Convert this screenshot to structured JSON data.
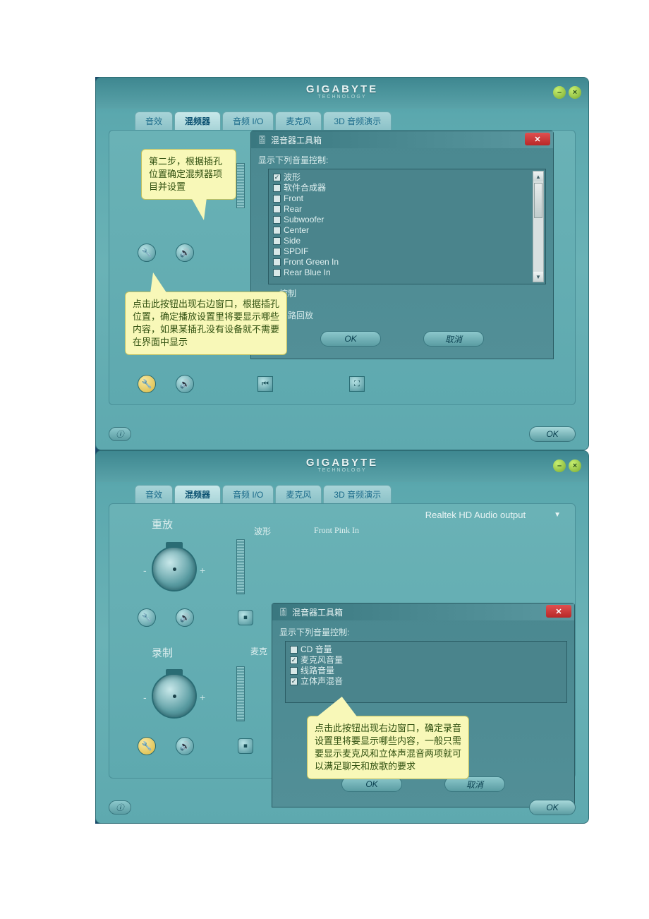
{
  "brand": {
    "name": "GIGABYTE",
    "sub": "TECHNOLOGY"
  },
  "tabs": [
    "音效",
    "混频器",
    "音频 I/O",
    "麦克风",
    "3D 音频演示"
  ],
  "toolbox_title": "混音器工具箱",
  "toolbox_label": "显示下列音量控制:",
  "list1": [
    {
      "label": "波形",
      "checked": true
    },
    {
      "label": "软件合成器",
      "checked": false
    },
    {
      "label": "Front",
      "checked": false
    },
    {
      "label": "Rear",
      "checked": false
    },
    {
      "label": "Subwoofer",
      "checked": false
    },
    {
      "label": "Center",
      "checked": false
    },
    {
      "label": "Side",
      "checked": false
    },
    {
      "label": "SPDIF",
      "checked": false
    },
    {
      "label": "Front Green In",
      "checked": false
    },
    {
      "label": "Rear Blue In",
      "checked": false
    }
  ],
  "list2": [
    {
      "label": "CD 音量",
      "checked": false
    },
    {
      "label": "麦克风音量",
      "checked": true
    },
    {
      "label": "线路音量",
      "checked": false
    },
    {
      "label": "立体声混音",
      "checked": true
    }
  ],
  "extra1": "控制",
  "extra2": "多路回放",
  "btn_ok": "OK",
  "btn_cancel": "取消",
  "callout1": "第二步，根据插孔位置确定混频器项目并设置",
  "callout2": "点击此按钮出现右边窗口，根据插孔位置，确定播放设置里将要显示哪些内容，如果某插孔没有设备就不需要在界面中显示",
  "callout3": "点击此按钮出现右边窗口，确定录音设置里将要显示哪些内容，一般只需要显示麦克风和立体声混音两项就可以满足聊天和放歌的要求",
  "section_playback": "重放",
  "section_record": "录制",
  "ch1": "波形",
  "ch2": "Front Pink In",
  "ch3": "麦克",
  "device": "Realtek HD Audio output",
  "colors": {
    "panel_bg": "#5ea9af",
    "callout_bg": "#f8f8b8",
    "accent_green": "#7aaa30",
    "close_red": "#b82828"
  }
}
